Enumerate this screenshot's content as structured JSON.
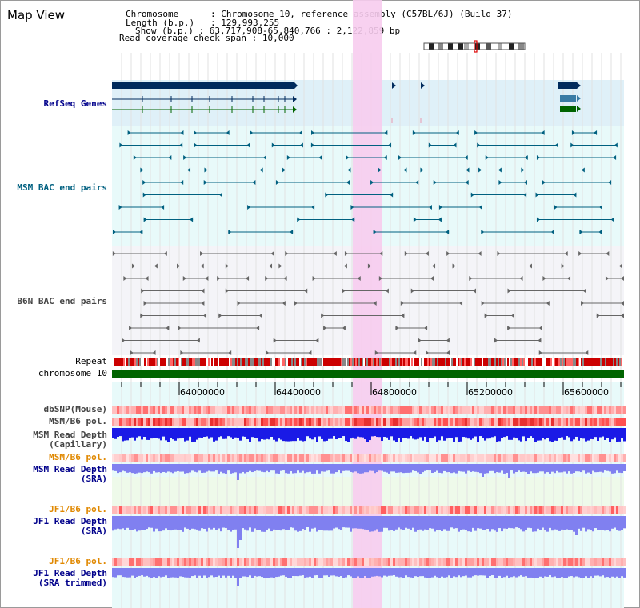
{
  "page": {
    "title": "Map View"
  },
  "info": {
    "chromosome_label": "Chromosome",
    "chromosome_value": "Chromosome 10, reference assembly (C57BL/6J) (Build 37)",
    "length_label": "Length (b.p.)",
    "length_value": "129,993,255",
    "show_label": "Show (b.p.)",
    "show_value": "63,717,908-65,840,766 : 2,122,859 bp",
    "coverage_label": "Read coverage check span",
    "coverage_value": "10,000"
  },
  "tracks": {
    "refseq": "RefSeq Genes",
    "msm_bac": "MSM BAC end pairs",
    "b6n_bac": "B6N BAC end pairs",
    "repeat": "Repeat",
    "chromosome": "chromosome 10",
    "dbsnp": "dbSNP(Mouse)",
    "msm_pol": "MSM/B6 pol.",
    "msm_depth_cap_1": "MSM Read Depth",
    "msm_depth_cap_2": "(Capillary)",
    "msm_pol_2": "MSM/B6 pol.",
    "msm_depth_sra_1": "MSM Read Depth",
    "msm_depth_sra_2": "(SRA)",
    "jf1_pol": "JF1/B6 pol.",
    "jf1_depth_sra_1": "JF1 Read Depth",
    "jf1_depth_sra_2": "(SRA)",
    "jf1_pol_2": "JF1/B6 pol.",
    "jf1_depth_trim_1": "JF1 Read Depth",
    "jf1_depth_trim_2": "(SRA trimmed)"
  },
  "axis": {
    "ticks": [
      "64000000",
      "64400000",
      "64800000",
      "65200000",
      "65600000"
    ]
  },
  "colors": {
    "refseq_band": "#dff0f8",
    "msm_band": "#e8fafa",
    "b6n_band": "#f4f4f8",
    "highlight": "#f7ccee",
    "chromosome_bar": "#006400",
    "gene_navy": "#002a5c",
    "msm_teal": "#006080",
    "b6n_gray": "#666666",
    "depth_blue": "#1a1ae6",
    "depth_lilac": "#8080f0"
  }
}
